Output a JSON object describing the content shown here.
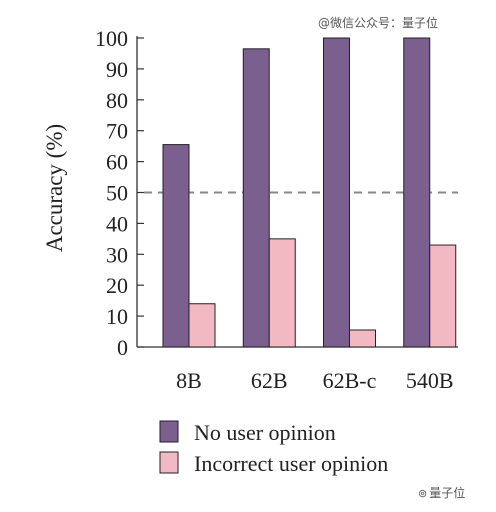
{
  "watermark_top": "@微信公众号：量子位",
  "watermark_bottom": "量子位",
  "colors": {
    "no_opinion": "#7B5F8E",
    "incorrect_opinion": "#F3B9C3",
    "reference_line": "#888888",
    "axis": "#333333"
  },
  "chart_data": {
    "type": "bar",
    "categories": [
      "8B",
      "62B",
      "62B-c",
      "540B"
    ],
    "series": [
      {
        "name": "No user opinion",
        "values": [
          65.5,
          96.5,
          100,
          100
        ]
      },
      {
        "name": "Incorrect user opinion",
        "values": [
          14,
          35,
          5.5,
          33
        ]
      }
    ],
    "ylabel": "Accuracy (%)",
    "xlabel": "",
    "ylim": [
      0,
      100
    ],
    "yticks": [
      0,
      10,
      20,
      30,
      40,
      50,
      60,
      70,
      80,
      90,
      100
    ],
    "reference_line": 50,
    "grid": false,
    "legend_position": "bottom"
  }
}
